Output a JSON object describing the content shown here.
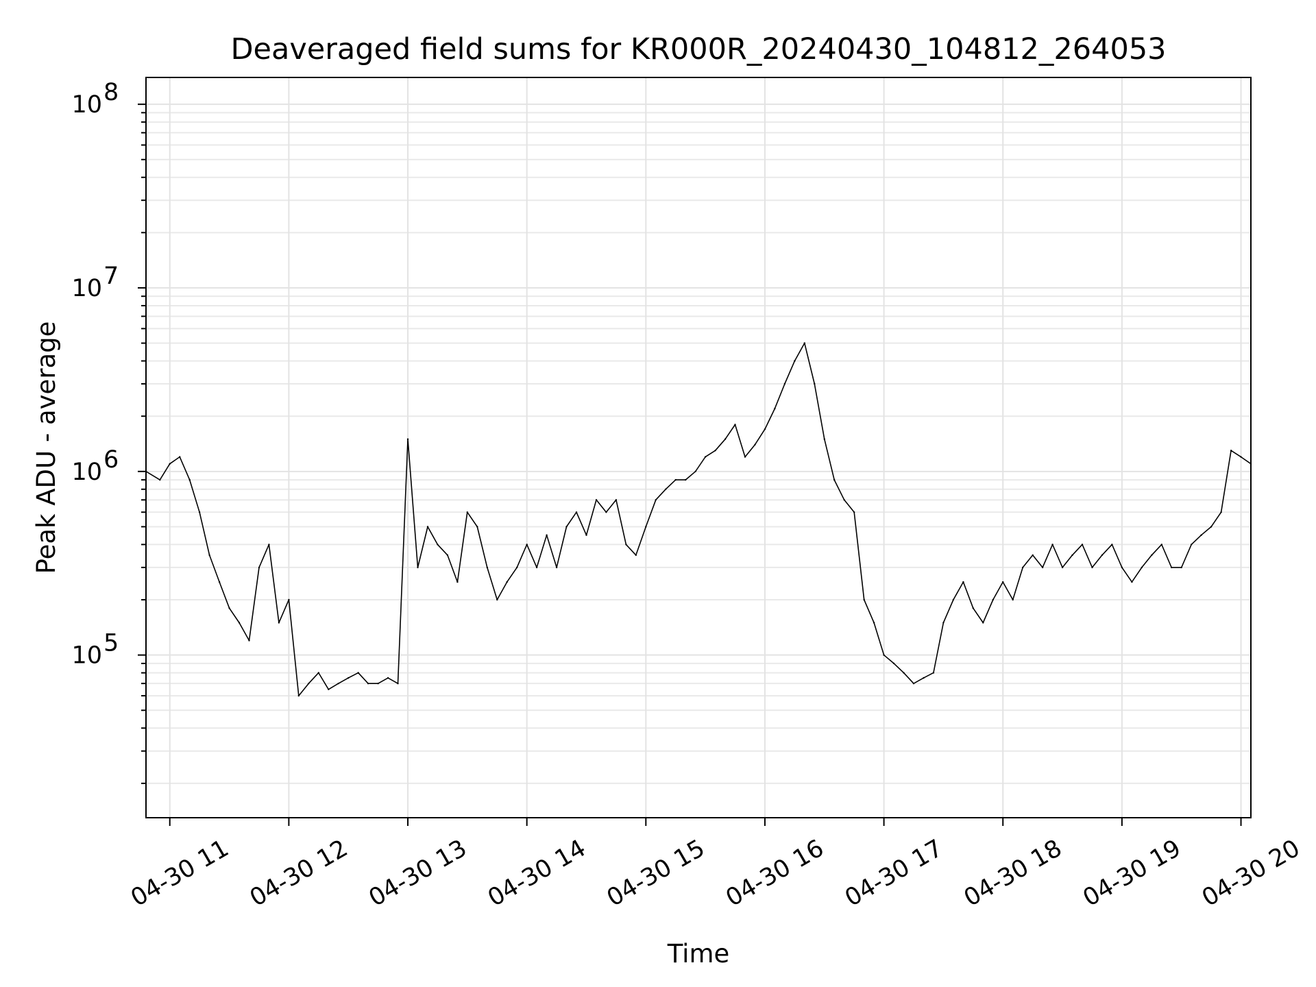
{
  "chart_data": {
    "type": "line",
    "title": "Deaveraged field sums for KR000R_20240430_104812_264053",
    "xlabel": "Time",
    "ylabel": "Peak ADU - average",
    "yscale": "log",
    "ylim": [
      13000,
      140000000
    ],
    "xlim": [
      "2024-04-30 10:48",
      "2024-04-30 20:05"
    ],
    "grid": true,
    "line_color": "#000000",
    "x_ticks": [
      {
        "t": "2024-04-30 11:00",
        "label": "04-30 11"
      },
      {
        "t": "2024-04-30 12:00",
        "label": "04-30 12"
      },
      {
        "t": "2024-04-30 13:00",
        "label": "04-30 13"
      },
      {
        "t": "2024-04-30 14:00",
        "label": "04-30 14"
      },
      {
        "t": "2024-04-30 15:00",
        "label": "04-30 15"
      },
      {
        "t": "2024-04-30 16:00",
        "label": "04-30 16"
      },
      {
        "t": "2024-04-30 17:00",
        "label": "04-30 17"
      },
      {
        "t": "2024-04-30 18:00",
        "label": "04-30 18"
      },
      {
        "t": "2024-04-30 19:00",
        "label": "04-30 19"
      },
      {
        "t": "2024-04-30 20:00",
        "label": "04-30 20"
      }
    ],
    "y_ticks": [
      {
        "v": 100000,
        "base": "10",
        "exp": "5"
      },
      {
        "v": 1000000,
        "base": "10",
        "exp": "6"
      },
      {
        "v": 10000000,
        "base": "10",
        "exp": "7"
      },
      {
        "v": 100000000,
        "base": "10",
        "exp": "8"
      }
    ],
    "series": [
      {
        "x": [
          "2024-04-30 10:48",
          "2024-04-30 10:55",
          "2024-04-30 11:00",
          "2024-04-30 11:05",
          "2024-04-30 11:10",
          "2024-04-30 11:15",
          "2024-04-30 11:20",
          "2024-04-30 11:25",
          "2024-04-30 11:30",
          "2024-04-30 11:35",
          "2024-04-30 11:40",
          "2024-04-30 11:45",
          "2024-04-30 11:50",
          "2024-04-30 11:55",
          "2024-04-30 12:00",
          "2024-04-30 12:05",
          "2024-04-30 12:10",
          "2024-04-30 12:15",
          "2024-04-30 12:20",
          "2024-04-30 12:25",
          "2024-04-30 12:30",
          "2024-04-30 12:35",
          "2024-04-30 12:40",
          "2024-04-30 12:45",
          "2024-04-30 12:50",
          "2024-04-30 12:55",
          "2024-04-30 13:00",
          "2024-04-30 13:05",
          "2024-04-30 13:10",
          "2024-04-30 13:15",
          "2024-04-30 13:20",
          "2024-04-30 13:25",
          "2024-04-30 13:30",
          "2024-04-30 13:35",
          "2024-04-30 13:40",
          "2024-04-30 13:45",
          "2024-04-30 13:50",
          "2024-04-30 13:55",
          "2024-04-30 14:00",
          "2024-04-30 14:05",
          "2024-04-30 14:10",
          "2024-04-30 14:15",
          "2024-04-30 14:20",
          "2024-04-30 14:25",
          "2024-04-30 14:30",
          "2024-04-30 14:35",
          "2024-04-30 14:40",
          "2024-04-30 14:45",
          "2024-04-30 14:50",
          "2024-04-30 14:55",
          "2024-04-30 15:00",
          "2024-04-30 15:05",
          "2024-04-30 15:10",
          "2024-04-30 15:15",
          "2024-04-30 15:20",
          "2024-04-30 15:25",
          "2024-04-30 15:30",
          "2024-04-30 15:35",
          "2024-04-30 15:40",
          "2024-04-30 15:45",
          "2024-04-30 15:50",
          "2024-04-30 15:55",
          "2024-04-30 16:00",
          "2024-04-30 16:05",
          "2024-04-30 16:10",
          "2024-04-30 16:15",
          "2024-04-30 16:20",
          "2024-04-30 16:25",
          "2024-04-30 16:30",
          "2024-04-30 16:35",
          "2024-04-30 16:40",
          "2024-04-30 16:45",
          "2024-04-30 16:50",
          "2024-04-30 16:55",
          "2024-04-30 17:00",
          "2024-04-30 17:05",
          "2024-04-30 17:10",
          "2024-04-30 17:15",
          "2024-04-30 17:20",
          "2024-04-30 17:25",
          "2024-04-30 17:30",
          "2024-04-30 17:35",
          "2024-04-30 17:40",
          "2024-04-30 17:45",
          "2024-04-30 17:50",
          "2024-04-30 17:55",
          "2024-04-30 18:00",
          "2024-04-30 18:05",
          "2024-04-30 18:10",
          "2024-04-30 18:15",
          "2024-04-30 18:20",
          "2024-04-30 18:25",
          "2024-04-30 18:30",
          "2024-04-30 18:35",
          "2024-04-30 18:40",
          "2024-04-30 18:45",
          "2024-04-30 18:50",
          "2024-04-30 18:55",
          "2024-04-30 19:00",
          "2024-04-30 19:05",
          "2024-04-30 19:10",
          "2024-04-30 19:15",
          "2024-04-30 19:20",
          "2024-04-30 19:25",
          "2024-04-30 19:30",
          "2024-04-30 19:35",
          "2024-04-30 19:40",
          "2024-04-30 19:45",
          "2024-04-30 19:50",
          "2024-04-30 19:55",
          "2024-04-30 20:00",
          "2024-04-30 20:05"
        ],
        "y": [
          1000000,
          900000,
          1100000,
          1200000,
          900000,
          600000,
          350000,
          250000,
          180000,
          150000,
          120000,
          300000,
          400000,
          150000,
          200000,
          60000,
          70000,
          80000,
          65000,
          70000,
          75000,
          80000,
          70000,
          70000,
          75000,
          70000,
          1500000,
          300000,
          500000,
          400000,
          350000,
          250000,
          600000,
          500000,
          300000,
          200000,
          250000,
          300000,
          400000,
          300000,
          450000,
          300000,
          500000,
          600000,
          450000,
          700000,
          600000,
          700000,
          400000,
          350000,
          500000,
          700000,
          800000,
          900000,
          900000,
          1000000,
          1200000,
          1300000,
          1500000,
          1800000,
          1200000,
          1400000,
          1700000,
          2200000,
          3000000,
          4000000,
          5000000,
          3000000,
          1500000,
          900000,
          700000,
          600000,
          200000,
          150000,
          100000,
          90000,
          80000,
          70000,
          75000,
          80000,
          150000,
          200000,
          250000,
          180000,
          150000,
          200000,
          250000,
          200000,
          300000,
          350000,
          300000,
          400000,
          300000,
          350000,
          400000,
          300000,
          350000,
          400000,
          300000,
          250000,
          300000,
          350000,
          400000,
          300000,
          300000,
          400000,
          450000,
          500000,
          600000,
          1300000,
          1200000,
          1100000
        ]
      }
    ]
  }
}
